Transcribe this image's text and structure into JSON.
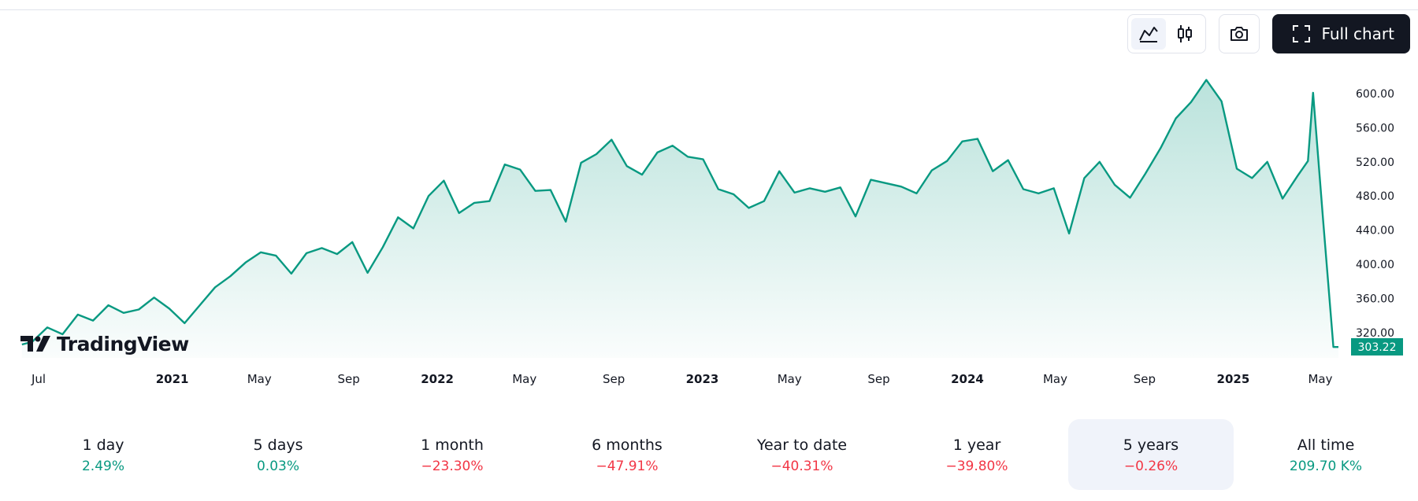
{
  "toolbar": {
    "icons": [
      "area-chart-icon",
      "candlestick-icon",
      "camera-icon",
      "fullscreen-icon"
    ],
    "full_chart_label": "Full chart"
  },
  "logo": {
    "text": "TradingView"
  },
  "price_label": "303.22",
  "colors": {
    "line": "#089981",
    "positive": "#089981",
    "negative": "#f23645"
  },
  "chart_data": {
    "type": "area",
    "ylim": [
      300,
      625
    ],
    "y_ticks": [
      {
        "value": 600,
        "label": "600.00"
      },
      {
        "value": 560,
        "label": "560.00"
      },
      {
        "value": 520,
        "label": "520.00"
      },
      {
        "value": 480,
        "label": "480.00"
      },
      {
        "value": 440,
        "label": "440.00"
      },
      {
        "value": 400,
        "label": "400.00"
      },
      {
        "value": 360,
        "label": "360.00"
      },
      {
        "value": 320,
        "label": "320.00"
      }
    ],
    "x_ticks": [
      {
        "label": "Jul",
        "date": "2020-07-01",
        "bold": false
      },
      {
        "label": "2021",
        "date": "2021-01-01",
        "bold": true
      },
      {
        "label": "May",
        "date": "2021-05-01",
        "bold": false
      },
      {
        "label": "Sep",
        "date": "2021-09-01",
        "bold": false
      },
      {
        "label": "2022",
        "date": "2022-01-01",
        "bold": true
      },
      {
        "label": "May",
        "date": "2022-05-01",
        "bold": false
      },
      {
        "label": "Sep",
        "date": "2022-09-01",
        "bold": false
      },
      {
        "label": "2023",
        "date": "2023-01-01",
        "bold": true
      },
      {
        "label": "May",
        "date": "2023-05-01",
        "bold": false
      },
      {
        "label": "Sep",
        "date": "2023-09-01",
        "bold": false
      },
      {
        "label": "2024",
        "date": "2024-01-01",
        "bold": true
      },
      {
        "label": "May",
        "date": "2024-05-01",
        "bold": false
      },
      {
        "label": "Sep",
        "date": "2024-09-01",
        "bold": false
      },
      {
        "label": "2025",
        "date": "2025-01-01",
        "bold": true
      },
      {
        "label": "May",
        "date": "2025-05-01",
        "bold": false
      }
    ],
    "series": [
      {
        "dates": [
          "2020-06-08",
          "2020-06-22",
          "2020-07-13",
          "2020-08-03",
          "2020-08-24",
          "2020-09-14",
          "2020-10-05",
          "2020-10-26",
          "2020-11-16",
          "2020-12-07",
          "2020-12-28",
          "2021-01-18",
          "2021-02-08",
          "2021-03-01",
          "2021-03-22",
          "2021-04-12",
          "2021-05-03",
          "2021-05-24",
          "2021-06-14",
          "2021-07-05",
          "2021-07-26",
          "2021-08-16",
          "2021-09-06",
          "2021-09-27",
          "2021-10-18",
          "2021-11-08",
          "2021-11-29",
          "2021-12-20",
          "2022-01-10",
          "2022-01-31",
          "2022-02-21",
          "2022-03-14",
          "2022-04-04",
          "2022-04-25",
          "2022-05-16",
          "2022-06-06",
          "2022-06-27",
          "2022-07-18",
          "2022-08-08",
          "2022-08-29",
          "2022-09-19",
          "2022-10-10",
          "2022-10-31",
          "2022-11-21",
          "2022-12-12",
          "2023-01-02",
          "2023-01-23",
          "2023-02-13",
          "2023-03-06",
          "2023-03-27",
          "2023-04-17",
          "2023-05-08",
          "2023-05-29",
          "2023-06-19",
          "2023-07-10",
          "2023-07-31",
          "2023-08-21",
          "2023-09-11",
          "2023-10-02",
          "2023-10-23",
          "2023-11-13",
          "2023-12-04",
          "2023-12-25",
          "2024-01-15",
          "2024-02-05",
          "2024-02-26",
          "2024-03-18",
          "2024-04-08",
          "2024-04-29",
          "2024-05-20",
          "2024-06-10",
          "2024-07-01",
          "2024-07-22",
          "2024-08-12",
          "2024-09-02",
          "2024-09-23",
          "2024-10-14",
          "2024-11-04",
          "2024-11-25",
          "2024-12-16",
          "2025-01-06",
          "2025-01-27",
          "2025-02-17",
          "2025-03-10",
          "2025-03-31",
          "2025-04-14",
          "2025-04-21",
          "2025-05-05",
          "2025-05-19",
          "2025-05-26"
        ],
        "values": [
          306,
          309,
          326,
          318,
          341,
          334,
          352,
          343,
          347,
          361,
          348,
          331,
          352,
          373,
          386,
          402,
          414,
          410,
          389,
          413,
          419,
          412,
          426,
          390,
          420,
          455,
          442,
          480,
          498,
          460,
          472,
          474,
          517,
          511,
          486,
          487,
          450,
          519,
          529,
          546,
          515,
          505,
          531,
          539,
          526,
          523,
          488,
          482,
          466,
          474,
          509,
          484,
          489,
          485,
          490,
          456,
          499,
          495,
          491,
          483,
          510,
          521,
          544,
          547,
          509,
          522,
          488,
          483,
          489,
          436,
          501,
          520,
          493,
          478,
          506,
          536,
          571,
          590,
          616,
          591,
          512,
          501,
          520,
          477,
          504,
          521,
          601,
          450,
          303,
          303
        ]
      }
    ]
  },
  "periods": [
    {
      "label": "1 day",
      "value": "2.49%",
      "dir": "pos",
      "active": false
    },
    {
      "label": "5 days",
      "value": "0.03%",
      "dir": "pos",
      "active": false
    },
    {
      "label": "1 month",
      "value": "−23.30%",
      "dir": "neg",
      "active": false
    },
    {
      "label": "6 months",
      "value": "−47.91%",
      "dir": "neg",
      "active": false
    },
    {
      "label": "Year to date",
      "value": "−40.31%",
      "dir": "neg",
      "active": false
    },
    {
      "label": "1 year",
      "value": "−39.80%",
      "dir": "neg",
      "active": false
    },
    {
      "label": "5 years",
      "value": "−0.26%",
      "dir": "neg",
      "active": true
    },
    {
      "label": "All time",
      "value": "209.70 K%",
      "dir": "pos",
      "active": false
    }
  ]
}
